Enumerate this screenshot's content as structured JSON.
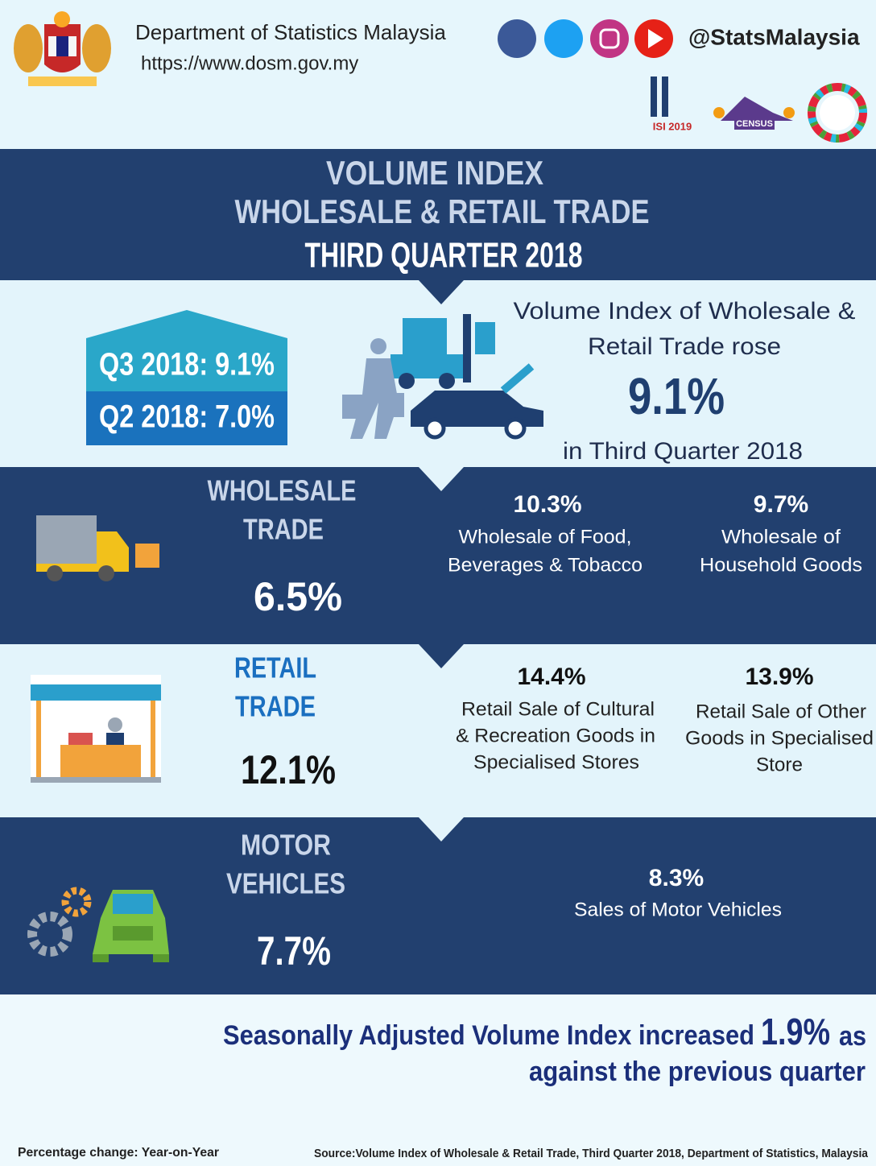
{
  "header": {
    "organization": "Department of Statistics Malaysia",
    "website": "https://www.dosm.gov.my",
    "handle": "@StatsMalaysia",
    "logos": [
      "ISI 2019",
      "CENSUS"
    ]
  },
  "title": {
    "lines": [
      "VOLUME INDEX",
      "WHOLESALE & RETAIL TRADE",
      "THIRD QUARTER 2018"
    ]
  },
  "summary": {
    "q3": "Q3 2018: 9.1%",
    "q2": "Q2 2018: 7.0%",
    "text_lines": [
      "Volume Index of Wholesale &",
      "Retail Trade rose"
    ],
    "value": "9.1%",
    "period": "in Third Quarter 2018"
  },
  "sections": [
    {
      "heading": [
        "WHOLESALE",
        "TRADE"
      ],
      "value": "6.5%",
      "items": [
        {
          "value": "10.3%",
          "label": [
            "Wholesale of Food,",
            "Beverages & Tobacco"
          ]
        },
        {
          "value": "9.7%",
          "label": [
            "Wholesale of",
            "Household Goods"
          ]
        }
      ]
    },
    {
      "heading": [
        "RETAIL",
        "TRADE"
      ],
      "value": "12.1%",
      "items": [
        {
          "value": "14.4%",
          "label": [
            "Retail Sale of Cultural",
            "& Recreation Goods in",
            "Specialised Stores"
          ]
        },
        {
          "value": "13.9%",
          "label": [
            "Retail Sale of Other",
            "Goods in Specialised",
            "Store"
          ]
        }
      ]
    },
    {
      "heading": [
        "MOTOR",
        "VEHICLES"
      ],
      "value": "7.7%",
      "items": [
        {
          "value": "8.3%",
          "label": [
            "Sales of Motor Vehicles"
          ]
        }
      ]
    }
  ],
  "seasonal": {
    "text": "Seasonally Adjusted Volume Index increased",
    "value": "1.9%",
    "suffix": "as",
    "line2": "against the previous quarter"
  },
  "footer": {
    "note": "Percentage change: Year-on-Year",
    "source": "Source:Volume Index of Wholesale & Retail Trade, Third Quarter 2018, Department of Statistics, Malaysia"
  }
}
